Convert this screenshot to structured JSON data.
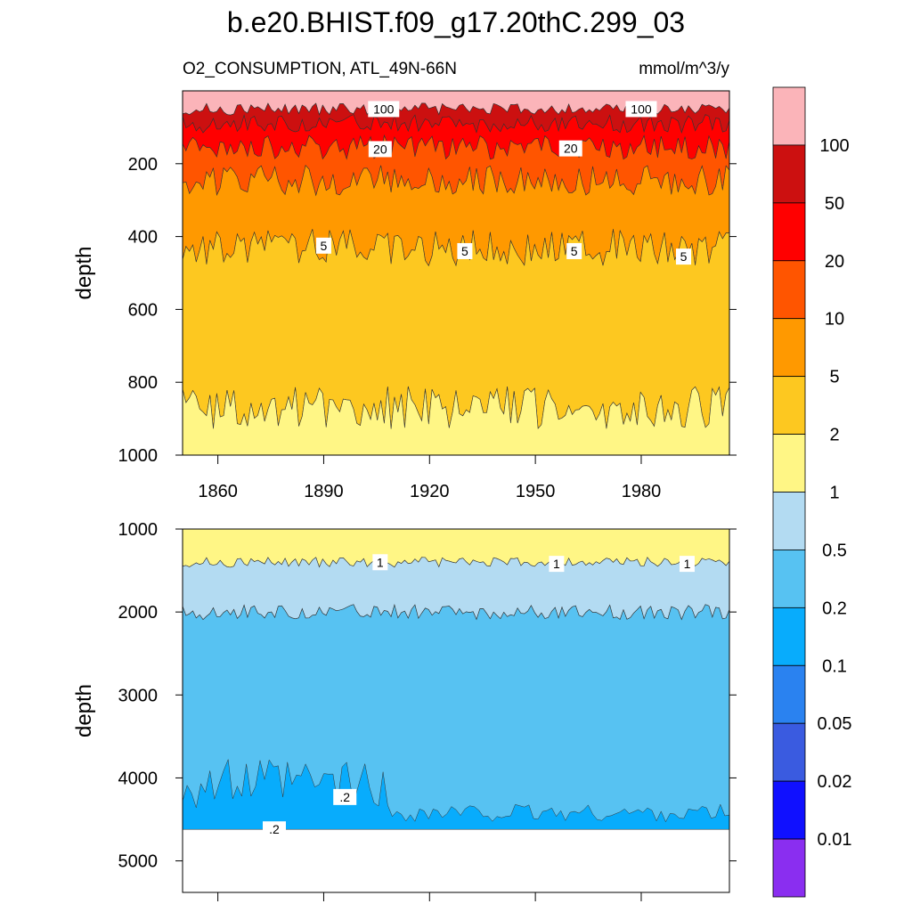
{
  "title": "b.e20.BHIST.f09_g17.20thC.299_03",
  "subtitle_left": "O2_CONSUMPTION, ATL_49N-66N",
  "subtitle_right": "mmol/m^3/y",
  "chart_data": [
    {
      "type": "heatmap",
      "panel": "upper",
      "ylabel": "depth",
      "ylim": [
        1000,
        0
      ],
      "yticks": [
        200,
        400,
        600,
        800,
        1000
      ],
      "xlim": [
        1850,
        2005
      ],
      "xticks": [
        1860,
        1890,
        1920,
        1950,
        1980
      ],
      "xtick_labels": [
        "1860",
        "1890",
        "1920",
        "1950",
        "1980"
      ],
      "bands": [
        {
          "color": "#fbb4b9",
          "top": 0,
          "bottom": 50
        },
        {
          "color": "#cc1010",
          "top": 50,
          "bottom": 90
        },
        {
          "color": "#ff0000",
          "top": 90,
          "bottom": 155
        },
        {
          "color": "#ff5500",
          "top": 155,
          "bottom": 245
        },
        {
          "color": "#ff9900",
          "top": 245,
          "bottom": 430
        },
        {
          "color": "#fdc820",
          "top": 430,
          "bottom": 870
        },
        {
          "color": "#fff685",
          "top": 870,
          "bottom": 1000
        }
      ],
      "contour_labels": [
        {
          "text": "100",
          "x": 1907,
          "depth": 50
        },
        {
          "text": "100",
          "x": 1980,
          "depth": 50
        },
        {
          "text": "20",
          "x": 1906,
          "depth": 160
        },
        {
          "text": "20",
          "x": 1960,
          "depth": 158
        },
        {
          "text": "5",
          "x": 1890,
          "depth": 425
        },
        {
          "text": "5",
          "x": 1930,
          "depth": 440
        },
        {
          "text": "5",
          "x": 1961,
          "depth": 440
        },
        {
          "text": "5",
          "x": 1992,
          "depth": 455
        }
      ]
    },
    {
      "type": "heatmap",
      "panel": "lower",
      "ylabel": "depth",
      "ylim": [
        5380,
        1000
      ],
      "yticks": [
        1000,
        2000,
        3000,
        4000,
        5000
      ],
      "xlim": [
        1850,
        2005
      ],
      "bottom_of_data": 4620,
      "bands": [
        {
          "color": "#fff685",
          "top": 1000,
          "bottom": 1400
        },
        {
          "color": "#b3dbf2",
          "top": 1400,
          "bottom": 2000
        },
        {
          "color": "#57c2f2",
          "top": 2000,
          "bottom": 4620
        }
      ],
      "patch_color": "#08acfc",
      "contour_labels": [
        {
          "text": "1",
          "x": 1906,
          "depth": 1400
        },
        {
          "text": "1",
          "x": 1956,
          "depth": 1420
        },
        {
          "text": "1",
          "x": 1993,
          "depth": 1420
        },
        {
          "text": ".2",
          "x": 1896,
          "depth": 4230
        },
        {
          "text": ".2",
          "x": 1876,
          "depth": 4620
        }
      ]
    }
  ],
  "colorbar": {
    "colors": [
      "#fbb4b9",
      "#cc1010",
      "#ff0000",
      "#ff5500",
      "#ff9900",
      "#fdc820",
      "#fff685",
      "#b3dbf2",
      "#57c2f2",
      "#08acfc",
      "#2a82f0",
      "#3a5be0",
      "#1010ff",
      "#8a2ef0"
    ],
    "labels": [
      "100",
      "50",
      "20",
      "10",
      "5",
      "2",
      "1",
      "0.5",
      "0.2",
      "0.1",
      "0.05",
      "0.02",
      "0.01"
    ]
  }
}
